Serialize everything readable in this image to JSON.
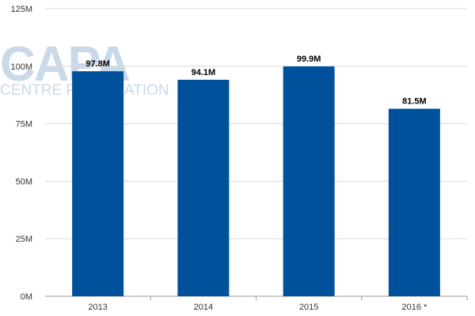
{
  "watermark": {
    "brand": "CAPA",
    "tagline": "CENTRE FOR AVIATION"
  },
  "chart_data": {
    "type": "bar",
    "title": "",
    "xlabel": "",
    "ylabel": "",
    "categories": [
      "2013",
      "2014",
      "2015",
      "2016 *"
    ],
    "values": [
      97.8,
      94.1,
      99.9,
      81.5
    ],
    "value_labels": [
      "97.8M",
      "94.1M",
      "99.9M",
      "81.5M"
    ],
    "ylim": [
      0,
      125
    ],
    "yticks": [
      0,
      25,
      50,
      75,
      100,
      125
    ],
    "ytick_labels": [
      "0M",
      "25M",
      "50M",
      "75M",
      "100M",
      "125M"
    ],
    "grid": true,
    "legend": "none",
    "colors": {
      "bar": "#00519c",
      "grid": "#d9d9d9",
      "axis": "#999999"
    }
  }
}
